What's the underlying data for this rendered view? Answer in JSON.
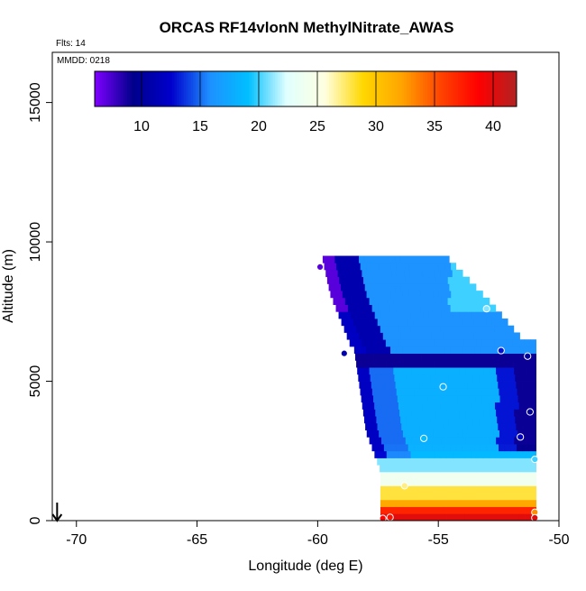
{
  "page": {
    "title": "ORCAS RF14vlonN MethylNitrate_AWAS",
    "flts_label": "Flts: 14",
    "mmdd_label": "MMDD: 0218"
  },
  "chart_data": {
    "type": "heatmap",
    "title": "ORCAS RF14vlonN MethylNitrate_AWAS",
    "xlabel": "Longitude (deg E)",
    "ylabel": "Altitude (m)",
    "xlim": [
      -71,
      -50
    ],
    "ylim": [
      0,
      16800
    ],
    "xticks": [
      -70,
      -65,
      -60,
      -55,
      -50
    ],
    "yticks": [
      0,
      5000,
      10000,
      15000
    ],
    "grid": false,
    "colorbar": {
      "placement": "top",
      "range": [
        6,
        42
      ],
      "ticks": [
        10,
        15,
        20,
        25,
        30,
        35,
        40
      ],
      "colors": [
        "#7f00ff",
        "#00008b",
        "#0000cd",
        "#1e90ff",
        "#00bfff",
        "#e0ffff",
        "#ffffe0",
        "#ffd700",
        "#ffa500",
        "#ff4500",
        "#ff0000",
        "#b22222"
      ]
    },
    "field_region": {
      "lon_range": [
        -60.3,
        -50.8
      ],
      "alt_range": [
        0,
        9300
      ],
      "description_values": {
        "high_west_edge": 7,
        "upper_band": 16,
        "dark_band_alt_5800": 9,
        "mid_core": 18,
        "low_layer": 24,
        "surface": 40
      }
    },
    "samples": [
      {
        "lon": -59.9,
        "alt": 9100,
        "value": 7
      },
      {
        "lon": -53.0,
        "alt": 7600,
        "value": 21
      },
      {
        "lon": -58.9,
        "alt": 6000,
        "value": 11
      },
      {
        "lon": -52.4,
        "alt": 6100,
        "value": 13
      },
      {
        "lon": -51.3,
        "alt": 5900,
        "value": 10
      },
      {
        "lon": -54.8,
        "alt": 4800,
        "value": 18
      },
      {
        "lon": -51.2,
        "alt": 3900,
        "value": 10
      },
      {
        "lon": -51.6,
        "alt": 3000,
        "value": 12
      },
      {
        "lon": -55.6,
        "alt": 2950,
        "value": 19
      },
      {
        "lon": -51.0,
        "alt": 2200,
        "value": 20
      },
      {
        "lon": -56.4,
        "alt": 1250,
        "value": 27
      },
      {
        "lon": -51.0,
        "alt": 300,
        "value": 33
      },
      {
        "lon": -57.0,
        "alt": 120,
        "value": 38
      },
      {
        "lon": -57.3,
        "alt": 80,
        "value": 39
      },
      {
        "lon": -51.0,
        "alt": 100,
        "value": 40
      }
    ],
    "wind_arrow": {
      "lon": -70.8,
      "alt": 0
    }
  }
}
